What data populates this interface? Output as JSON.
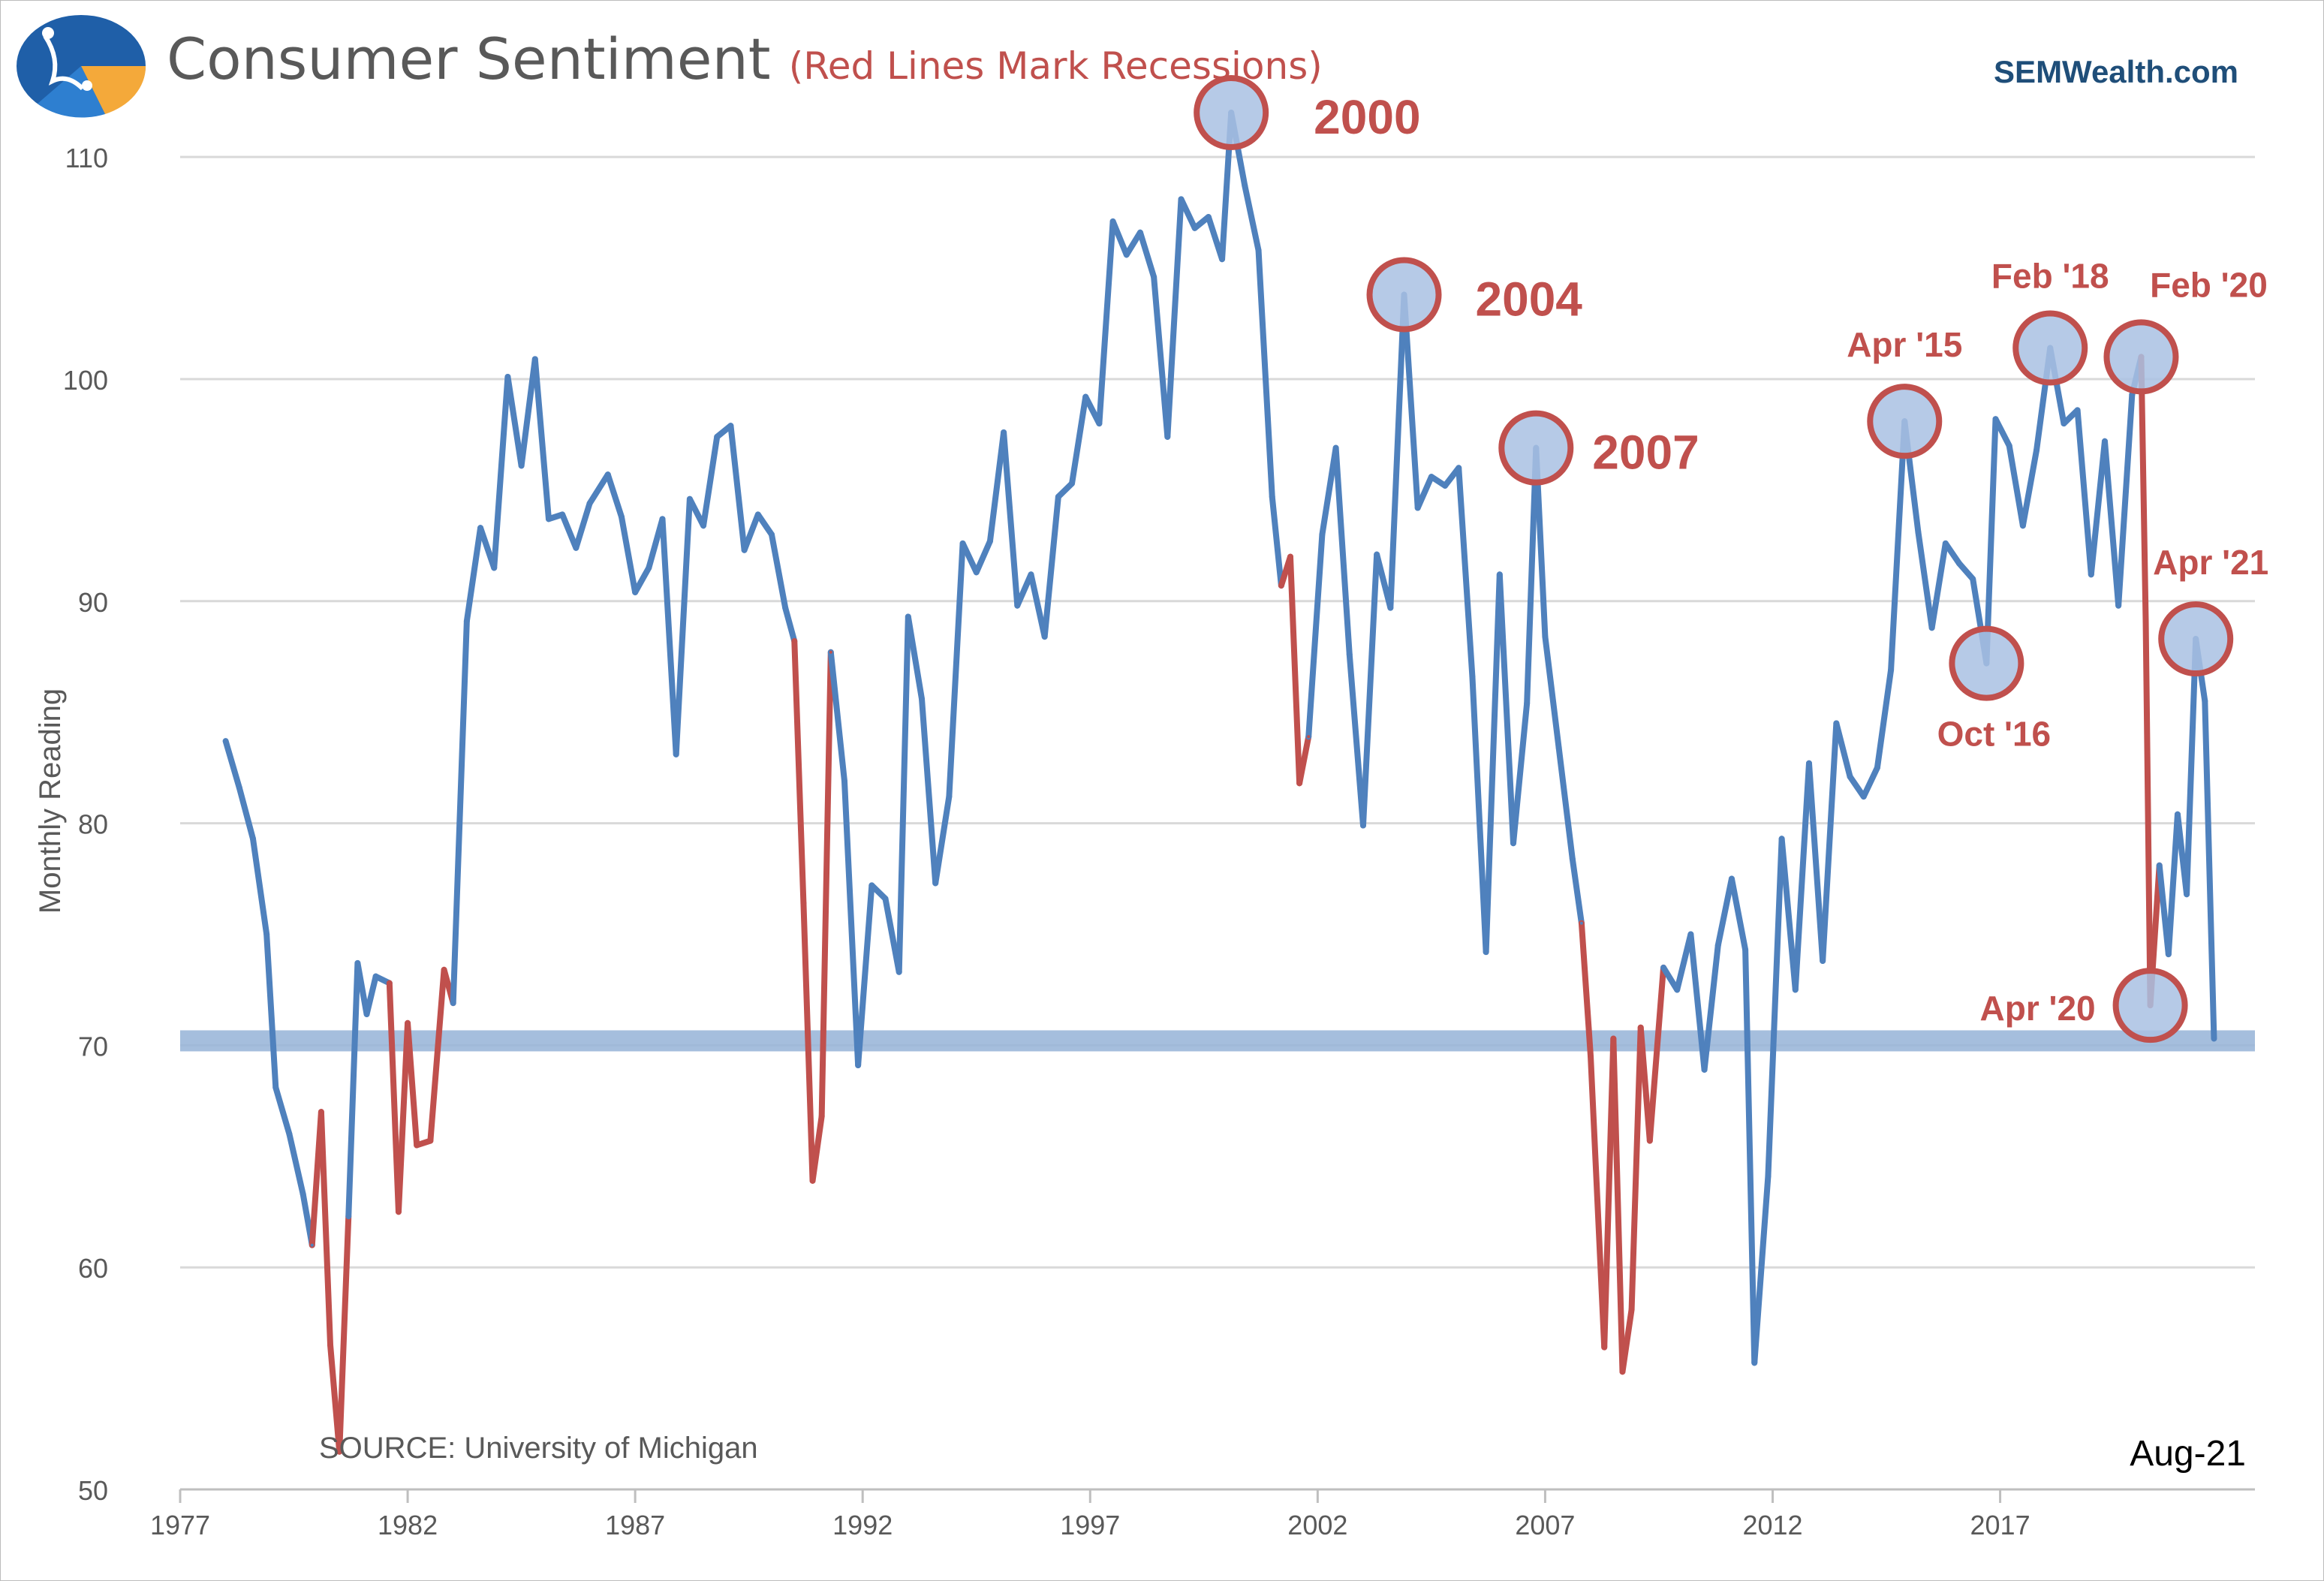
{
  "header": {
    "title": "Consumer Sentiment",
    "subtitle": "(Red Lines Mark Recessions)",
    "brand": "SEMWealth.com"
  },
  "colors": {
    "series": "#4f81bd",
    "recession": "#c0504d",
    "band": "#95b3d7",
    "circle_fill": "#a9c1e3",
    "circle_stroke": "#c0504d",
    "annotation": "#c0504d",
    "grid": "#d9d9d9"
  },
  "chart_data": {
    "type": "line",
    "title": "",
    "ylabel": "Monthly Reading",
    "xlim": [
      1977,
      2022.6
    ],
    "ylim": [
      50,
      112
    ],
    "yticks": [
      50,
      60,
      70,
      80,
      90,
      100,
      110
    ],
    "xticks": [
      1977,
      1982,
      1987,
      1992,
      1997,
      2002,
      2007,
      2012,
      2017
    ],
    "grid": true,
    "source": "SOURCE: University of Michigan",
    "date_label": "Aug-21",
    "reference_band": 70.2,
    "points": [
      [
        1978.0,
        83.7
      ],
      [
        1978.3,
        81.6
      ],
      [
        1978.6,
        79.3
      ],
      [
        1978.9,
        75.0
      ],
      [
        1979.1,
        68.1
      ],
      [
        1979.4,
        66.0
      ],
      [
        1979.7,
        63.3
      ],
      [
        1979.9,
        61.0
      ],
      [
        1980.1,
        67.0
      ],
      [
        1980.3,
        56.5
      ],
      [
        1980.5,
        51.7
      ],
      [
        1980.7,
        62.3
      ],
      [
        1980.9,
        73.7
      ],
      [
        1981.1,
        71.4
      ],
      [
        1981.3,
        73.1
      ],
      [
        1981.6,
        72.8
      ],
      [
        1981.8,
        62.5
      ],
      [
        1982.0,
        71.0
      ],
      [
        1982.2,
        65.5
      ],
      [
        1982.5,
        65.7
      ],
      [
        1982.8,
        73.4
      ],
      [
        1983.0,
        71.9
      ],
      [
        1983.3,
        89.1
      ],
      [
        1983.6,
        93.3
      ],
      [
        1983.9,
        91.5
      ],
      [
        1984.2,
        100.1
      ],
      [
        1984.5,
        96.1
      ],
      [
        1984.8,
        100.9
      ],
      [
        1985.1,
        93.7
      ],
      [
        1985.4,
        93.9
      ],
      [
        1985.7,
        92.4
      ],
      [
        1986.0,
        94.4
      ],
      [
        1986.4,
        95.7
      ],
      [
        1986.7,
        93.8
      ],
      [
        1987.0,
        90.4
      ],
      [
        1987.3,
        91.5
      ],
      [
        1987.6,
        93.7
      ],
      [
        1987.9,
        83.1
      ],
      [
        1988.2,
        94.6
      ],
      [
        1988.5,
        93.4
      ],
      [
        1988.8,
        97.4
      ],
      [
        1989.1,
        97.9
      ],
      [
        1989.4,
        92.3
      ],
      [
        1989.7,
        93.9
      ],
      [
        1990.0,
        93.0
      ],
      [
        1990.3,
        89.7
      ],
      [
        1990.5,
        88.2
      ],
      [
        1990.7,
        76.4
      ],
      [
        1990.9,
        63.9
      ],
      [
        1991.1,
        66.8
      ],
      [
        1991.3,
        87.7
      ],
      [
        1991.6,
        81.9
      ],
      [
        1991.9,
        69.1
      ],
      [
        1992.2,
        77.2
      ],
      [
        1992.5,
        76.6
      ],
      [
        1992.8,
        73.3
      ],
      [
        1993.0,
        89.3
      ],
      [
        1993.3,
        85.6
      ],
      [
        1993.6,
        77.3
      ],
      [
        1993.9,
        81.2
      ],
      [
        1994.2,
        92.6
      ],
      [
        1994.5,
        91.3
      ],
      [
        1994.8,
        92.7
      ],
      [
        1995.1,
        97.6
      ],
      [
        1995.4,
        89.8
      ],
      [
        1995.7,
        91.2
      ],
      [
        1996.0,
        88.4
      ],
      [
        1996.3,
        94.7
      ],
      [
        1996.6,
        95.3
      ],
      [
        1996.9,
        99.2
      ],
      [
        1997.2,
        98.0
      ],
      [
        1997.5,
        107.1
      ],
      [
        1997.8,
        105.6
      ],
      [
        1998.1,
        106.6
      ],
      [
        1998.4,
        104.6
      ],
      [
        1998.7,
        97.4
      ],
      [
        1999.0,
        108.1
      ],
      [
        1999.3,
        106.8
      ],
      [
        1999.6,
        107.3
      ],
      [
        1999.9,
        105.4
      ],
      [
        2000.1,
        112.0
      ],
      [
        2000.4,
        108.7
      ],
      [
        2000.7,
        105.8
      ],
      [
        2001.0,
        94.7
      ],
      [
        2001.2,
        90.7
      ],
      [
        2001.4,
        92.0
      ],
      [
        2001.6,
        81.8
      ],
      [
        2001.8,
        83.9
      ],
      [
        2002.1,
        93.0
      ],
      [
        2002.4,
        96.9
      ],
      [
        2002.7,
        87.6
      ],
      [
        2003.0,
        79.9
      ],
      [
        2003.3,
        92.1
      ],
      [
        2003.6,
        89.7
      ],
      [
        2003.9,
        103.8
      ],
      [
        2004.2,
        94.2
      ],
      [
        2004.5,
        95.6
      ],
      [
        2004.8,
        95.2
      ],
      [
        2005.1,
        96.0
      ],
      [
        2005.4,
        86.6
      ],
      [
        2005.7,
        74.2
      ],
      [
        2006.0,
        91.2
      ],
      [
        2006.3,
        79.1
      ],
      [
        2006.6,
        85.4
      ],
      [
        2006.8,
        96.9
      ],
      [
        2007.0,
        88.4
      ],
      [
        2007.3,
        83.4
      ],
      [
        2007.6,
        78.4
      ],
      [
        2007.8,
        75.5
      ],
      [
        2008.0,
        69.5
      ],
      [
        2008.3,
        56.4
      ],
      [
        2008.5,
        70.3
      ],
      [
        2008.7,
        55.3
      ],
      [
        2008.9,
        58.1
      ],
      [
        2009.1,
        70.8
      ],
      [
        2009.3,
        65.7
      ],
      [
        2009.6,
        73.5
      ],
      [
        2009.9,
        72.5
      ],
      [
        2010.2,
        75.0
      ],
      [
        2010.5,
        68.9
      ],
      [
        2010.8,
        74.5
      ],
      [
        2011.1,
        77.5
      ],
      [
        2011.4,
        74.3
      ],
      [
        2011.6,
        55.7
      ],
      [
        2011.9,
        64.1
      ],
      [
        2012.2,
        79.3
      ],
      [
        2012.5,
        72.5
      ],
      [
        2012.8,
        82.7
      ],
      [
        2013.1,
        73.8
      ],
      [
        2013.4,
        84.5
      ],
      [
        2013.7,
        82.1
      ],
      [
        2014.0,
        81.2
      ],
      [
        2014.3,
        82.5
      ],
      [
        2014.6,
        86.9
      ],
      [
        2014.9,
        98.1
      ],
      [
        2015.2,
        93.1
      ],
      [
        2015.5,
        88.8
      ],
      [
        2015.8,
        92.6
      ],
      [
        2016.1,
        91.7
      ],
      [
        2016.4,
        91.0
      ],
      [
        2016.7,
        87.2
      ],
      [
        2016.9,
        98.2
      ],
      [
        2017.2,
        97.0
      ],
      [
        2017.5,
        93.4
      ],
      [
        2017.8,
        96.8
      ],
      [
        2018.1,
        101.4
      ],
      [
        2018.4,
        98.0
      ],
      [
        2018.7,
        98.6
      ],
      [
        2019.0,
        91.2
      ],
      [
        2019.3,
        97.2
      ],
      [
        2019.6,
        89.8
      ],
      [
        2019.9,
        99.3
      ],
      [
        2020.1,
        101.0
      ],
      [
        2020.2,
        89.1
      ],
      [
        2020.3,
        71.8
      ],
      [
        2020.5,
        78.1
      ],
      [
        2020.7,
        74.1
      ],
      [
        2020.9,
        80.4
      ],
      [
        2021.1,
        76.8
      ],
      [
        2021.3,
        88.3
      ],
      [
        2021.5,
        85.5
      ],
      [
        2021.7,
        70.3
      ]
    ],
    "recessions": [
      [
        1980.0,
        1980.6
      ],
      [
        1981.5,
        1982.9
      ],
      [
        1990.5,
        1991.3
      ],
      [
        2001.2,
        2001.9
      ],
      [
        2007.9,
        2009.5
      ],
      [
        2020.1,
        2020.4
      ]
    ],
    "annotations": [
      {
        "label": "2000",
        "x": 2000.1,
        "y": 112.0
      },
      {
        "label": "2004",
        "x": 2003.9,
        "y": 103.8
      },
      {
        "label": "2007",
        "x": 2006.8,
        "y": 96.9
      },
      {
        "label": "Apr '15",
        "x": 2014.9,
        "y": 98.1
      },
      {
        "label": "Oct '16",
        "x": 2016.7,
        "y": 87.2
      },
      {
        "label": "Feb '18",
        "x": 2018.1,
        "y": 101.4
      },
      {
        "label": "Feb '20",
        "x": 2020.1,
        "y": 101.0
      },
      {
        "label": "Apr '20",
        "x": 2020.3,
        "y": 71.8
      },
      {
        "label": "Apr '21",
        "x": 2021.3,
        "y": 88.3
      }
    ]
  }
}
